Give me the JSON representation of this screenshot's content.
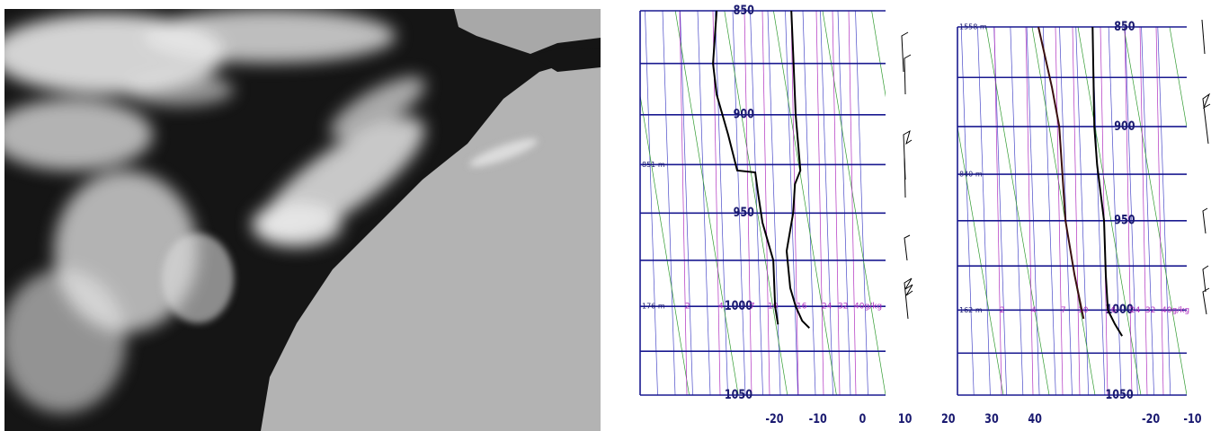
{
  "chart_data": [
    {
      "type": "line",
      "y_log": true,
      "grid": true,
      "xlim": [
        -22,
        46
      ],
      "xticks": [
        -20,
        -10,
        0,
        10,
        20,
        30,
        40
      ],
      "ylim": [
        1050,
        850
      ],
      "yticks": [
        850,
        900,
        950,
        1000,
        1050
      ],
      "minor_yticks": [
        875,
        925,
        975,
        1025
      ],
      "mixing_ratio_labels": [
        "2",
        "4",
        "7",
        "10",
        "16",
        "24",
        "32",
        "40g/kg"
      ],
      "annotations": [
        {
          "text": "851 m",
          "y": 925
        },
        {
          "text": "176 m",
          "y": 1000
        }
      ],
      "series": [
        {
          "color": "#000000",
          "x": [
            19.9,
            20.4,
            21.1,
            22.4,
            20.9,
            20.4,
            18.6,
            19.6,
            21.1,
            22.9,
            24.9
          ],
          "y": [
            850,
            870,
            900,
            928,
            935,
            950,
            970,
            990,
            1000,
            1008,
            1012
          ]
        },
        {
          "color": "#000000",
          "x": [
            -0.8,
            -1.8,
            -0.8,
            2.4,
            4.9,
            9.9,
            10.7,
            11.9,
            14.9,
            15.4,
            16.2
          ],
          "y": [
            850,
            875,
            890,
            910,
            928,
            929,
            940,
            955,
            975,
            1000,
            1010
          ]
        }
      ]
    },
    {
      "type": "line",
      "y_log": true,
      "grid": true,
      "xlim": [
        -21,
        45
      ],
      "xticks": [
        -20,
        -10,
        0,
        10,
        20,
        30,
        40
      ],
      "ylim": [
        1050,
        850
      ],
      "yticks": [
        850,
        900,
        950,
        1000,
        1050
      ],
      "minor_yticks": [
        875,
        925,
        975,
        1025
      ],
      "mixing_ratio_labels": [
        "2",
        "4",
        "7",
        "10",
        "16",
        "24",
        "32",
        "40g/kg"
      ],
      "annotations": [
        {
          "text": "1558 m",
          "y": 850
        },
        {
          "text": "840 m",
          "y": 925
        },
        {
          "text": "162 m",
          "y": 1000
        }
      ],
      "series": [
        {
          "color": "#000000",
          "x": [
            17.9,
            18.4,
            19.2,
            21.2,
            21.7,
            22.3,
            24.3,
            26.4
          ],
          "y": [
            850,
            900,
            920,
            950,
            980,
            1000,
            1008,
            1015
          ]
        },
        {
          "color": "#3a1010",
          "x": [
            2.3,
            6.2,
            8.3,
            10.1,
            12.7,
            15.3
          ],
          "y": [
            850,
            880,
            900,
            950,
            980,
            1005
          ]
        }
      ]
    }
  ]
}
